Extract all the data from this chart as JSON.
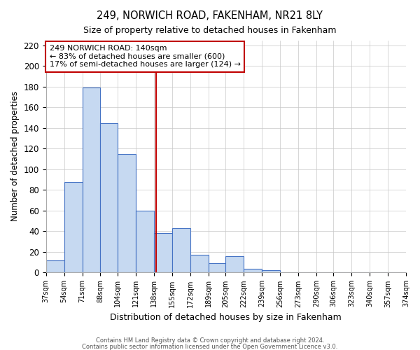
{
  "title": "249, NORWICH ROAD, FAKENHAM, NR21 8LY",
  "subtitle": "Size of property relative to detached houses in Fakenham",
  "xlabel": "Distribution of detached houses by size in Fakenham",
  "ylabel": "Number of detached properties",
  "bar_values": [
    12,
    88,
    179,
    145,
    115,
    60,
    38,
    43,
    17,
    9,
    16,
    4,
    2,
    0,
    0,
    0,
    0,
    0,
    0,
    0
  ],
  "bar_labels": [
    "37sqm",
    "54sqm",
    "71sqm",
    "88sqm",
    "104sqm",
    "121sqm",
    "138sqm",
    "155sqm",
    "172sqm",
    "189sqm",
    "205sqm",
    "222sqm",
    "239sqm",
    "256sqm",
    "273sqm",
    "290sqm",
    "306sqm",
    "323sqm",
    "340sqm",
    "357sqm",
    "374sqm"
  ],
  "bin_edges": [
    37,
    54,
    71,
    88,
    104,
    121,
    138,
    155,
    172,
    189,
    205,
    222,
    239,
    256,
    273,
    290,
    306,
    323,
    340,
    357,
    374
  ],
  "bar_color": "#c6d9f1",
  "bar_edge_color": "#4472c4",
  "property_value": 140,
  "vline_color": "#c00000",
  "ylim": [
    0,
    225
  ],
  "yticks": [
    0,
    20,
    40,
    60,
    80,
    100,
    120,
    140,
    160,
    180,
    200,
    220
  ],
  "annotation_title": "249 NORWICH ROAD: 140sqm",
  "annotation_line1": "← 83% of detached houses are smaller (600)",
  "annotation_line2": "17% of semi-detached houses are larger (124) →",
  "annotation_box_color": "#ffffff",
  "annotation_box_edge": "#c00000",
  "footnote1": "Contains HM Land Registry data © Crown copyright and database right 2024.",
  "footnote2": "Contains public sector information licensed under the Open Government Licence v3.0."
}
